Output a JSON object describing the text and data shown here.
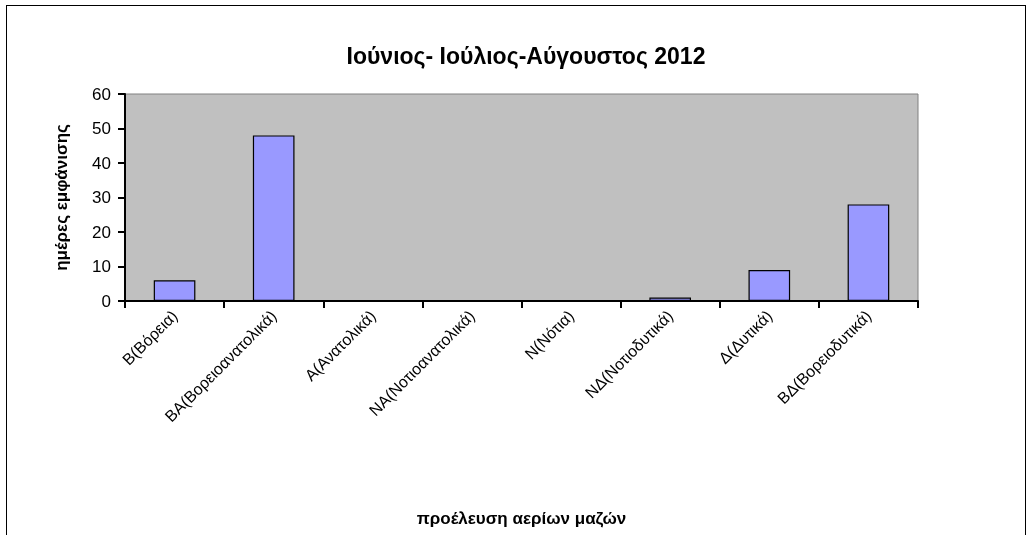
{
  "chart_data": {
    "type": "bar",
    "title": "Ιούνιος- Ιούλιος-Αύγουστος 2012",
    "xlabel": "προέλευση αερίων μαζών",
    "ylabel": "ημέρες εμφάνισης",
    "categories": [
      "Β(Βόρεια)",
      "ΒΑ(Βορειοανατολικά)",
      "Α(Ανατολικά)",
      "ΝΑ(Νοτιοανατολικά)",
      "Ν(Νότια)",
      "ΝΔ(Νοτιοδυτικά)",
      "Δ(Δυτικά)",
      "ΒΔ(Βορειοδυτικά)"
    ],
    "values": [
      6,
      48,
      0,
      0,
      0,
      1,
      9,
      28
    ],
    "color": "#9999ff",
    "ylim": [
      0,
      60
    ],
    "yticks": [
      0,
      10,
      20,
      30,
      40,
      50,
      60
    ],
    "grid": false
  }
}
